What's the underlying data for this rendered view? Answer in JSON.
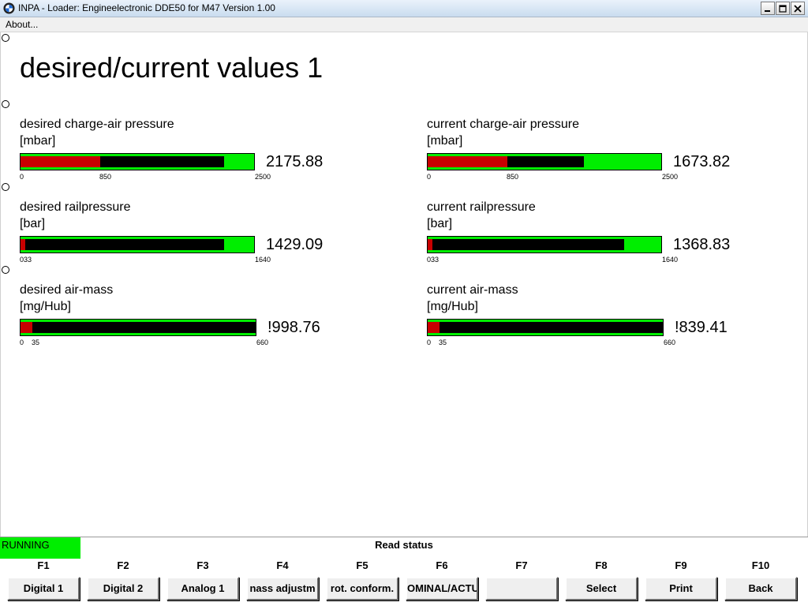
{
  "window": {
    "title": "INPA - Loader:  Engineelectronic DDE50 for M47 Version 1.00",
    "icon": "bmw-logo-icon",
    "controls": [
      "minimize-icon",
      "maximize-icon",
      "close-icon"
    ]
  },
  "menu": {
    "items": [
      {
        "label": "About..."
      }
    ]
  },
  "page": {
    "title": "desired/current values 1"
  },
  "gauges": [
    {
      "label": "desired charge-air pressure",
      "unit": "[mbar]",
      "value": "2175.88",
      "min_label": "0",
      "mid_label": "850",
      "max_label": "2500",
      "fill_fraction": 0.87,
      "red_fraction": 0.34
    },
    {
      "label": "current charge-air pressure",
      "unit": "[mbar]",
      "value": "1673.82",
      "min_label": "0",
      "mid_label": "850",
      "max_label": "2500",
      "fill_fraction": 0.67,
      "red_fraction": 0.34
    },
    {
      "label": "desired railpressure",
      "unit": "[bar]",
      "value": "1429.09",
      "min_label": "033",
      "mid_label": "",
      "max_label": "1640",
      "fill_fraction": 0.87,
      "red_fraction": 0.02
    },
    {
      "label": "current railpressure",
      "unit": "[bar]",
      "value": "1368.83",
      "min_label": "033",
      "mid_label": "",
      "max_label": "1640",
      "fill_fraction": 0.84,
      "red_fraction": 0.02
    },
    {
      "label": "desired air-mass",
      "unit": "[mg/Hub]",
      "value": "!998.76",
      "min_label": "0",
      "mid_label": "35",
      "max_label": "660",
      "fill_fraction": 1.0,
      "red_fraction": 0.05
    },
    {
      "label": "current air-mass",
      "unit": "[mg/Hub]",
      "value": "!839.41",
      "min_label": "0",
      "mid_label": "35",
      "max_label": "660",
      "fill_fraction": 1.0,
      "red_fraction": 0.05
    }
  ],
  "status": {
    "state": "RUNNING",
    "message": "Read status"
  },
  "function_keys": [
    {
      "key": "F1",
      "label": "Digital 1"
    },
    {
      "key": "F2",
      "label": "Digital 2"
    },
    {
      "key": "F3",
      "label": "Analog 1"
    },
    {
      "key": "F4",
      "label": "nass adjustm"
    },
    {
      "key": "F5",
      "label": "rot. conform."
    },
    {
      "key": "F6",
      "label": "OMINAL/ACTU."
    },
    {
      "key": "F7",
      "label": ""
    },
    {
      "key": "F8",
      "label": "Select"
    },
    {
      "key": "F9",
      "label": "Print"
    },
    {
      "key": "F10",
      "label": "Back"
    }
  ],
  "colors": {
    "bar_ok": "#00ee00",
    "bar_red": "#c80000",
    "bar_fill": "#000000",
    "status_running": "#00ee00"
  }
}
